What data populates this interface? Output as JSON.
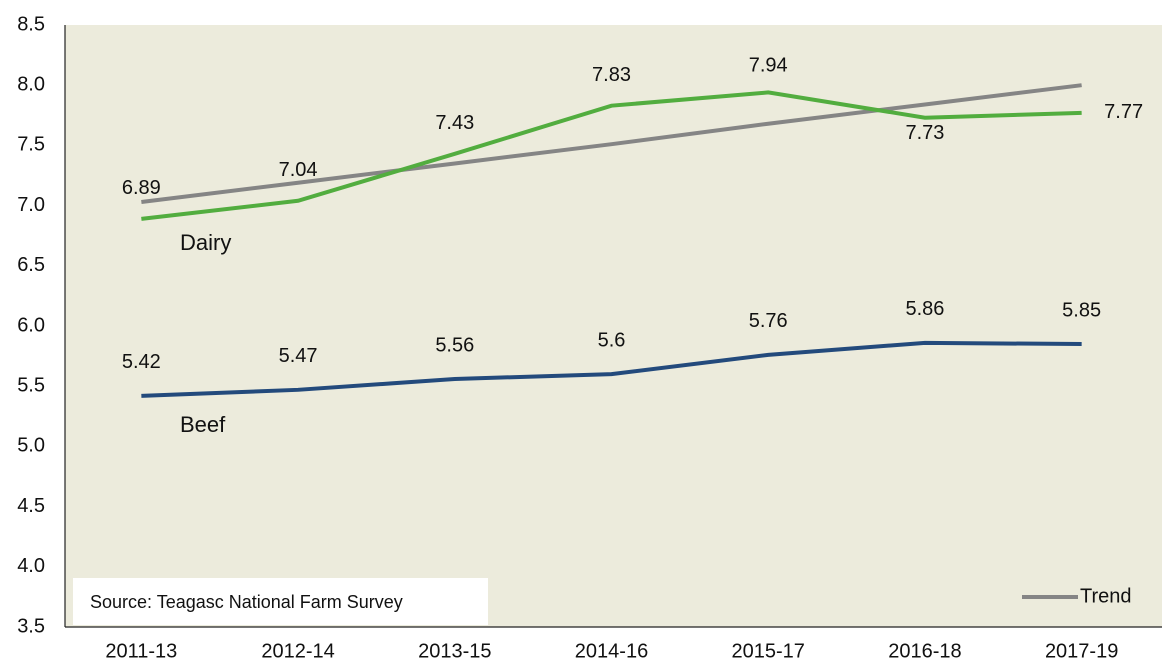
{
  "chart_data": {
    "type": "line",
    "categories": [
      "2011-13",
      "2012-14",
      "2013-15",
      "2014-16",
      "2015-17",
      "2016-18",
      "2017-19"
    ],
    "series": [
      {
        "name": "Dairy",
        "color": "#52ad3f",
        "values": [
          6.89,
          7.04,
          7.43,
          7.83,
          7.94,
          7.73,
          7.77
        ]
      },
      {
        "name": "Beef",
        "color": "#234a7c",
        "values": [
          5.42,
          5.47,
          5.56,
          5.6,
          5.76,
          5.86,
          5.85
        ]
      },
      {
        "name": "Trend",
        "color": "#858585",
        "values": [
          7.03,
          7.19,
          7.35,
          7.51,
          7.68,
          7.84,
          8.0
        ]
      }
    ],
    "ylim": [
      3.5,
      8.5
    ],
    "yticks": [
      "3.5",
      "4.0",
      "4.5",
      "5.0",
      "5.5",
      "6.0",
      "6.5",
      "7.0",
      "7.5",
      "8.0",
      "8.5"
    ],
    "yticks_values": [
      3.5,
      4.0,
      4.5,
      5.0,
      5.5,
      6.0,
      6.5,
      7.0,
      7.5,
      8.0,
      8.5
    ],
    "annotation": "Source: Teagasc National Farm Survey",
    "grid": false
  }
}
